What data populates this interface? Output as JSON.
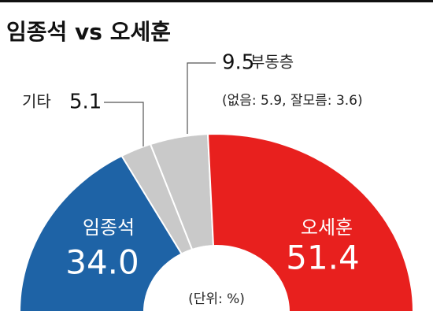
{
  "chart_data": {
    "type": "donut",
    "title": "임종석 vs 오세훈",
    "categories": [
      "임종석",
      "기타",
      "부동층",
      "오세훈"
    ],
    "values": [
      34.0,
      5.1,
      9.5,
      51.4
    ],
    "value_labels": [
      "34.0",
      "5.1",
      "9.5",
      "51.4"
    ],
    "colors": [
      "#1e63a6",
      "#c9c9c9",
      "#c9c9c9",
      "#e8201e"
    ],
    "annotation": "(없음: 5.9, 잘모름: 3.6)",
    "unit_note": "(단위: %)"
  }
}
